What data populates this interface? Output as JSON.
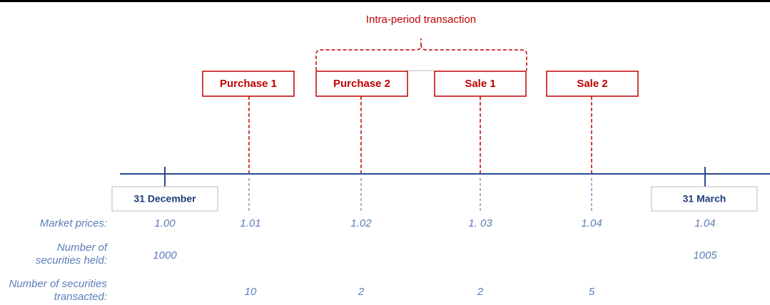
{
  "title": "Intra-period transaction",
  "events": [
    "Purchase 1",
    "Purchase 2",
    "Sale 1",
    "Sale 2"
  ],
  "dates": [
    "31 December",
    "31 March"
  ],
  "rows": [
    {
      "label": [
        "Market prices:"
      ],
      "values": [
        "1.00",
        "1.01",
        "1.02",
        "1. 03",
        "1.04",
        "1.04"
      ]
    },
    {
      "label": [
        "Number of",
        "securities held:"
      ],
      "values": [
        "1000",
        null,
        null,
        null,
        null,
        "1005"
      ]
    },
    {
      "label": [
        "Number of securities",
        "transacted:"
      ],
      "values": [
        null,
        "10",
        "2",
        "2",
        "5",
        null
      ]
    }
  ]
}
